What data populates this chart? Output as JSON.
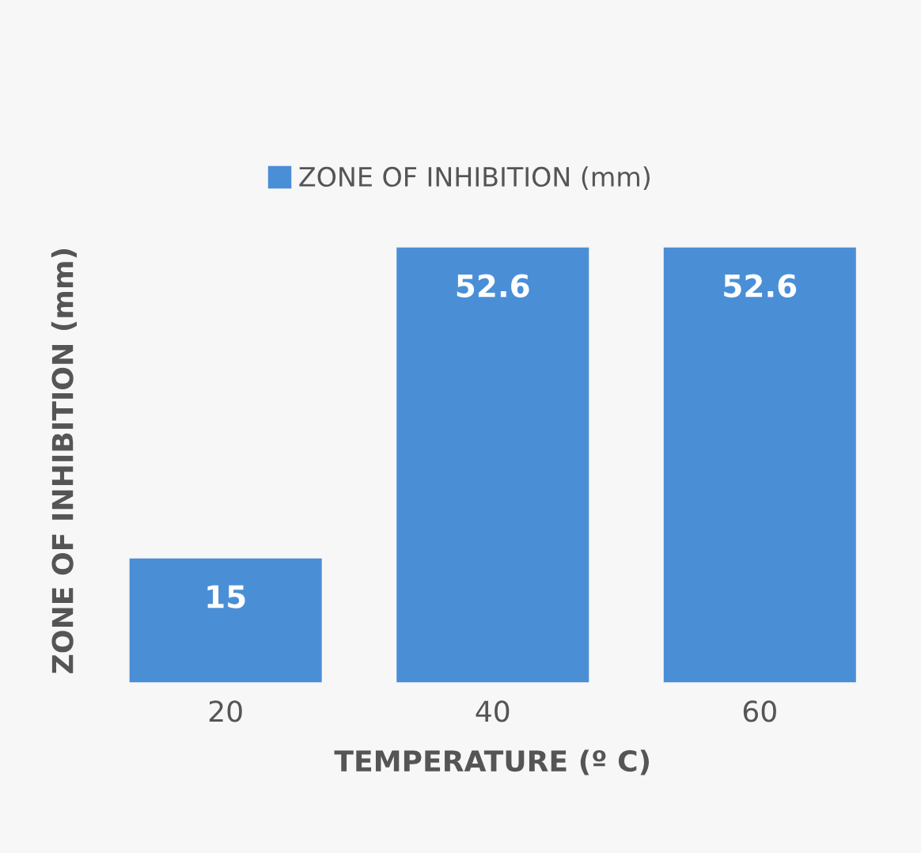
{
  "chart_data": {
    "type": "bar",
    "xlabel": "TEMPERATURE (º C)",
    "ylabel": "ZONE OF INHIBITION (mm)",
    "categories": [
      "20",
      "40",
      "60"
    ],
    "series": [
      {
        "name": "ZONE OF INHIBITION (mm)",
        "color": "#4a8fd6",
        "values": [
          15,
          52.6,
          52.6
        ]
      }
    ],
    "data_labels": true,
    "legend": "top"
  }
}
